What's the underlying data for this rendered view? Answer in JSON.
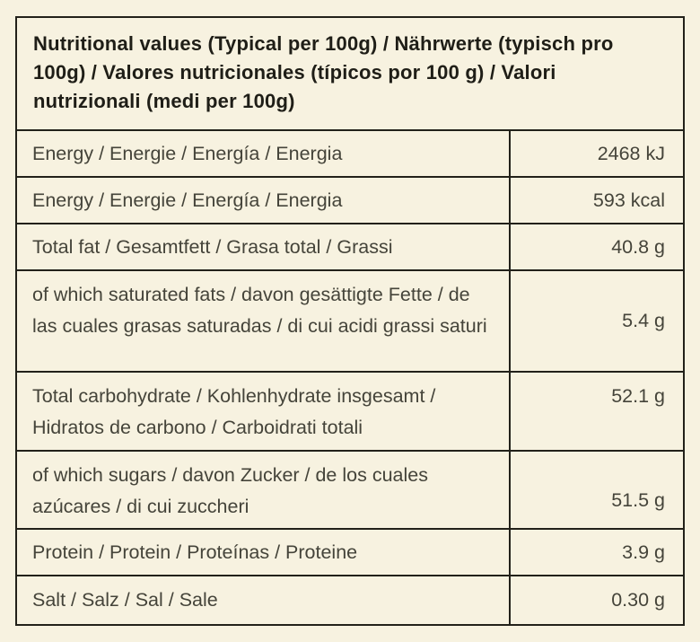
{
  "page": {
    "background_color": "#f7f2e0",
    "border_color": "#22211a",
    "text_color": "#45443a",
    "title_color": "#1f1e17"
  },
  "table": {
    "title": "Nutritional values (Typical per 100g) / Nährwerte (typisch pro 100g) / Valores nutricionales (típicos por 100 g) / Valori nutrizionali (medi per 100g)",
    "rows": [
      {
        "label": "Energy / Energie / Energía / Energia",
        "value": "2468 kJ"
      },
      {
        "label": "Energy / Energie / Energía / Energia",
        "value": "593 kcal"
      },
      {
        "label": "Total fat / Gesamtfett / Grasa total / Grassi",
        "value": "40.8 g"
      },
      {
        "label": "of which saturated fats /  davon gesättigte Fette / de las cuales grasas saturadas / di cui acidi grassi saturi",
        "value": "5.4 g"
      },
      {
        "label": "Total carbohydrate / Kohlenhydrate insgesamt / Hidratos de carbono / Carboidrati totali",
        "value": "52.1 g"
      },
      {
        "label": "of which sugars / davon Zucker / de los cuales azúcares / di cui zuccheri",
        "value": "51.5 g"
      },
      {
        "label": "Protein / Protein / Proteínas / Proteine",
        "value": "3.9 g"
      },
      {
        "label": "Salt / Salz / Sal / Sale",
        "value": "0.30 g"
      }
    ]
  }
}
